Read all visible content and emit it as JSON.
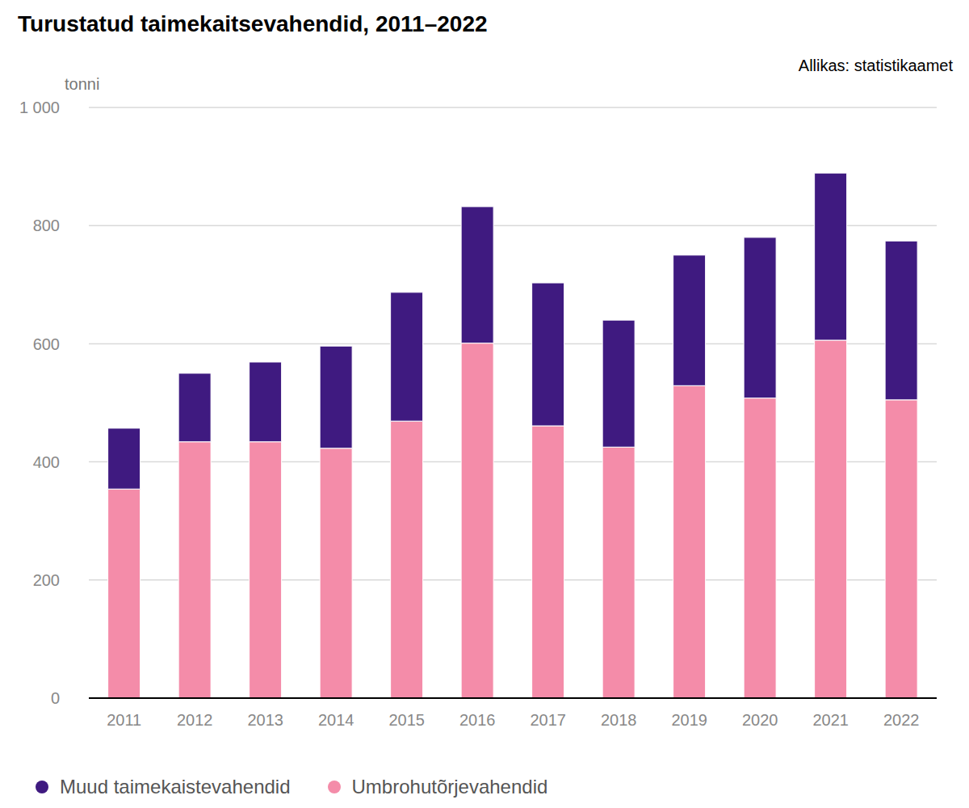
{
  "chart_data": {
    "type": "bar",
    "title": "Turustatud taimekaitsevahendid, 2011–2022",
    "source": "Allikas: statistikaamet",
    "y_label": "tonni",
    "categories": [
      "2011",
      "2012",
      "2013",
      "2014",
      "2015",
      "2016",
      "2017",
      "2018",
      "2019",
      "2020",
      "2021",
      "2022"
    ],
    "series": [
      {
        "name": "Muud taimekaistevahendid",
        "color": "#3f1a80",
        "values": [
          103,
          116,
          135,
          173,
          218,
          231,
          242,
          215,
          221,
          272,
          283,
          269
        ]
      },
      {
        "name": "Umbrohutõrjevahendid",
        "color": "#f48ca9",
        "values": [
          354,
          434,
          434,
          423,
          469,
          601,
          461,
          425,
          529,
          508,
          606,
          505
        ]
      }
    ],
    "stacked": true,
    "ylim": [
      0,
      1000
    ],
    "yticks": [
      0,
      200,
      400,
      600,
      800,
      {
        "value": 1000,
        "label": "1 000"
      }
    ],
    "grid": true,
    "legend": "bottom-left"
  }
}
